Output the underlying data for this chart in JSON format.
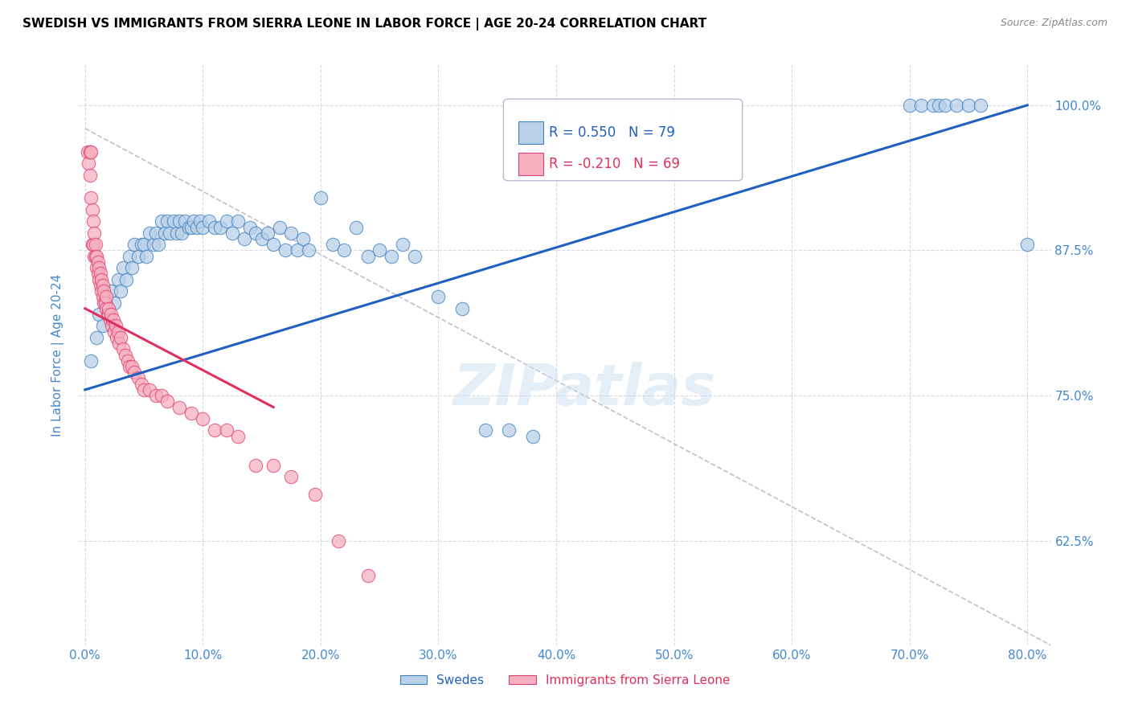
{
  "title": "SWEDISH VS IMMIGRANTS FROM SIERRA LEONE IN LABOR FORCE | AGE 20-24 CORRELATION CHART",
  "source": "Source: ZipAtlas.com",
  "ylabel": "In Labor Force | Age 20-24",
  "x_tick_labels": [
    "0.0%",
    "10.0%",
    "20.0%",
    "30.0%",
    "40.0%",
    "50.0%",
    "60.0%",
    "70.0%",
    "80.0%"
  ],
  "x_tick_values": [
    0.0,
    0.1,
    0.2,
    0.3,
    0.4,
    0.5,
    0.6,
    0.7,
    0.8
  ],
  "y_tick_labels": [
    "62.5%",
    "75.0%",
    "87.5%",
    "100.0%"
  ],
  "y_tick_values": [
    0.625,
    0.75,
    0.875,
    1.0
  ],
  "xlim": [
    -0.005,
    0.82
  ],
  "ylim": [
    0.535,
    1.035
  ],
  "legend_blue_label": "Swedes",
  "legend_pink_label": "Immigrants from Sierra Leone",
  "R_blue": 0.55,
  "N_blue": 79,
  "R_pink": -0.21,
  "N_pink": 69,
  "blue_color": "#b8d0e8",
  "pink_color": "#f5b0c0",
  "blue_edge_color": "#4080c0",
  "pink_edge_color": "#e04070",
  "blue_line_color": "#2060c0",
  "pink_line_color": "#e03060",
  "ref_line_color": "#c0c0d0",
  "tick_label_color": "#4488cc",
  "axis_label_color": "#4488cc",
  "watermark": "ZIPatlas",
  "blue_scatter_x": [
    0.005,
    0.01,
    0.012,
    0.015,
    0.018,
    0.02,
    0.022,
    0.025,
    0.028,
    0.03,
    0.032,
    0.035,
    0.038,
    0.04,
    0.042,
    0.045,
    0.048,
    0.05,
    0.052,
    0.055,
    0.058,
    0.06,
    0.062,
    0.065,
    0.068,
    0.07,
    0.072,
    0.075,
    0.078,
    0.08,
    0.082,
    0.085,
    0.088,
    0.09,
    0.092,
    0.095,
    0.098,
    0.1,
    0.105,
    0.11,
    0.115,
    0.12,
    0.125,
    0.13,
    0.135,
    0.14,
    0.145,
    0.15,
    0.155,
    0.16,
    0.165,
    0.17,
    0.175,
    0.18,
    0.185,
    0.19,
    0.2,
    0.21,
    0.22,
    0.23,
    0.24,
    0.25,
    0.26,
    0.27,
    0.28,
    0.3,
    0.32,
    0.34,
    0.36,
    0.38,
    0.7,
    0.71,
    0.72,
    0.725,
    0.73,
    0.74,
    0.75,
    0.76,
    0.8
  ],
  "blue_scatter_y": [
    0.78,
    0.8,
    0.82,
    0.81,
    0.83,
    0.82,
    0.84,
    0.83,
    0.85,
    0.84,
    0.86,
    0.85,
    0.87,
    0.86,
    0.88,
    0.87,
    0.88,
    0.88,
    0.87,
    0.89,
    0.88,
    0.89,
    0.88,
    0.9,
    0.89,
    0.9,
    0.89,
    0.9,
    0.89,
    0.9,
    0.89,
    0.9,
    0.895,
    0.895,
    0.9,
    0.895,
    0.9,
    0.895,
    0.9,
    0.895,
    0.895,
    0.9,
    0.89,
    0.9,
    0.885,
    0.895,
    0.89,
    0.885,
    0.89,
    0.88,
    0.895,
    0.875,
    0.89,
    0.875,
    0.885,
    0.875,
    0.92,
    0.88,
    0.875,
    0.895,
    0.87,
    0.875,
    0.87,
    0.88,
    0.87,
    0.835,
    0.825,
    0.72,
    0.72,
    0.715,
    1.0,
    1.0,
    1.0,
    1.0,
    1.0,
    1.0,
    1.0,
    1.0,
    0.88
  ],
  "pink_scatter_x": [
    0.002,
    0.003,
    0.004,
    0.004,
    0.005,
    0.005,
    0.006,
    0.006,
    0.007,
    0.007,
    0.008,
    0.008,
    0.009,
    0.009,
    0.01,
    0.01,
    0.011,
    0.011,
    0.012,
    0.012,
    0.013,
    0.013,
    0.014,
    0.014,
    0.015,
    0.015,
    0.016,
    0.016,
    0.017,
    0.018,
    0.018,
    0.019,
    0.02,
    0.02,
    0.021,
    0.022,
    0.023,
    0.024,
    0.025,
    0.026,
    0.027,
    0.028,
    0.029,
    0.03,
    0.032,
    0.034,
    0.036,
    0.038,
    0.04,
    0.042,
    0.045,
    0.048,
    0.05,
    0.055,
    0.06,
    0.065,
    0.07,
    0.08,
    0.09,
    0.1,
    0.11,
    0.12,
    0.13,
    0.145,
    0.16,
    0.175,
    0.195,
    0.215,
    0.24
  ],
  "pink_scatter_y": [
    0.96,
    0.95,
    0.94,
    0.96,
    0.92,
    0.96,
    0.88,
    0.91,
    0.88,
    0.9,
    0.87,
    0.89,
    0.87,
    0.88,
    0.86,
    0.87,
    0.855,
    0.865,
    0.85,
    0.86,
    0.845,
    0.855,
    0.84,
    0.85,
    0.835,
    0.845,
    0.83,
    0.84,
    0.83,
    0.825,
    0.835,
    0.82,
    0.82,
    0.825,
    0.815,
    0.82,
    0.81,
    0.815,
    0.805,
    0.81,
    0.8,
    0.805,
    0.795,
    0.8,
    0.79,
    0.785,
    0.78,
    0.775,
    0.775,
    0.77,
    0.765,
    0.76,
    0.755,
    0.755,
    0.75,
    0.75,
    0.745,
    0.74,
    0.735,
    0.73,
    0.72,
    0.72,
    0.715,
    0.69,
    0.69,
    0.68,
    0.665,
    0.625,
    0.595
  ],
  "blue_line_x0": 0.0,
  "blue_line_x1": 0.8,
  "blue_line_y0": 0.755,
  "blue_line_y1": 1.0,
  "pink_line_x0": 0.0,
  "pink_line_x1": 0.16,
  "pink_line_y0": 0.825,
  "pink_line_y1": 0.74,
  "ref_line_x0": 0.0,
  "ref_line_x1": 0.82,
  "ref_line_y0": 0.98,
  "ref_line_y1": 0.535
}
